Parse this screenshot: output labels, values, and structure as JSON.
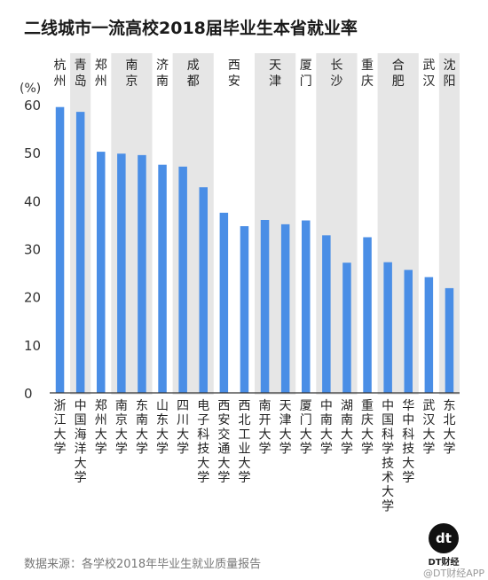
{
  "page": {
    "title": "二线城市一流高校2018届毕业生本省就业率",
    "unit": "(%)",
    "source": "数据来源：各学校2018年毕业生就业质量报告",
    "brand_logo_text": "dt",
    "brand_name": "DT财经",
    "watermark": "@DT财经APP"
  },
  "colors": {
    "bar": "#4a8ee6",
    "band": "#e6e6e6",
    "axis": "#333333"
  },
  "chart_data": {
    "type": "bar",
    "title": "二线城市一流高校2018届毕业生本省就业率",
    "ylabel": "(%)",
    "ylim": [
      0,
      60
    ],
    "yticks": [
      0,
      10,
      20,
      30,
      40,
      50,
      60
    ],
    "grid": false,
    "groups": [
      {
        "city": "杭州",
        "shaded": false,
        "bars": [
          0
        ]
      },
      {
        "city": "青岛",
        "shaded": true,
        "bars": [
          1
        ]
      },
      {
        "city": "郑州",
        "shaded": false,
        "bars": [
          2
        ]
      },
      {
        "city": "南京",
        "shaded": true,
        "bars": [
          3,
          4
        ]
      },
      {
        "city": "济南",
        "shaded": false,
        "bars": [
          5
        ]
      },
      {
        "city": "成都",
        "shaded": true,
        "bars": [
          6,
          7
        ]
      },
      {
        "city": "西安",
        "shaded": false,
        "bars": [
          8,
          9
        ]
      },
      {
        "city": "天津",
        "shaded": true,
        "bars": [
          10,
          11
        ]
      },
      {
        "city": "厦门",
        "shaded": false,
        "bars": [
          12
        ]
      },
      {
        "city": "长沙",
        "shaded": true,
        "bars": [
          13,
          14
        ]
      },
      {
        "city": "重庆",
        "shaded": false,
        "bars": [
          15
        ]
      },
      {
        "city": "合肥",
        "shaded": true,
        "bars": [
          16,
          17
        ]
      },
      {
        "city": "武汉",
        "shaded": false,
        "bars": [
          18
        ]
      },
      {
        "city": "沈阳",
        "shaded": true,
        "bars": [
          19
        ]
      }
    ],
    "categories": [
      "浙江大学",
      "中国海洋大学",
      "郑州大学",
      "南京大学",
      "东南大学",
      "山东大学",
      "四川大学",
      "电子科技大学",
      "西安交通大学",
      "西北工业大学",
      "南开大学",
      "天津大学",
      "厦门大学",
      "中南大学",
      "湖南大学",
      "重庆大学",
      "中国科学技术大学",
      "华中科技大学",
      "武汉大学",
      "东北大学"
    ],
    "values": [
      59.5,
      58.5,
      50.2,
      49.8,
      49.5,
      47.5,
      47.1,
      42.8,
      37.5,
      34.7,
      36.0,
      35.1,
      35.9,
      32.8,
      27.1,
      32.4,
      27.2,
      25.6,
      24.1,
      21.8
    ]
  }
}
